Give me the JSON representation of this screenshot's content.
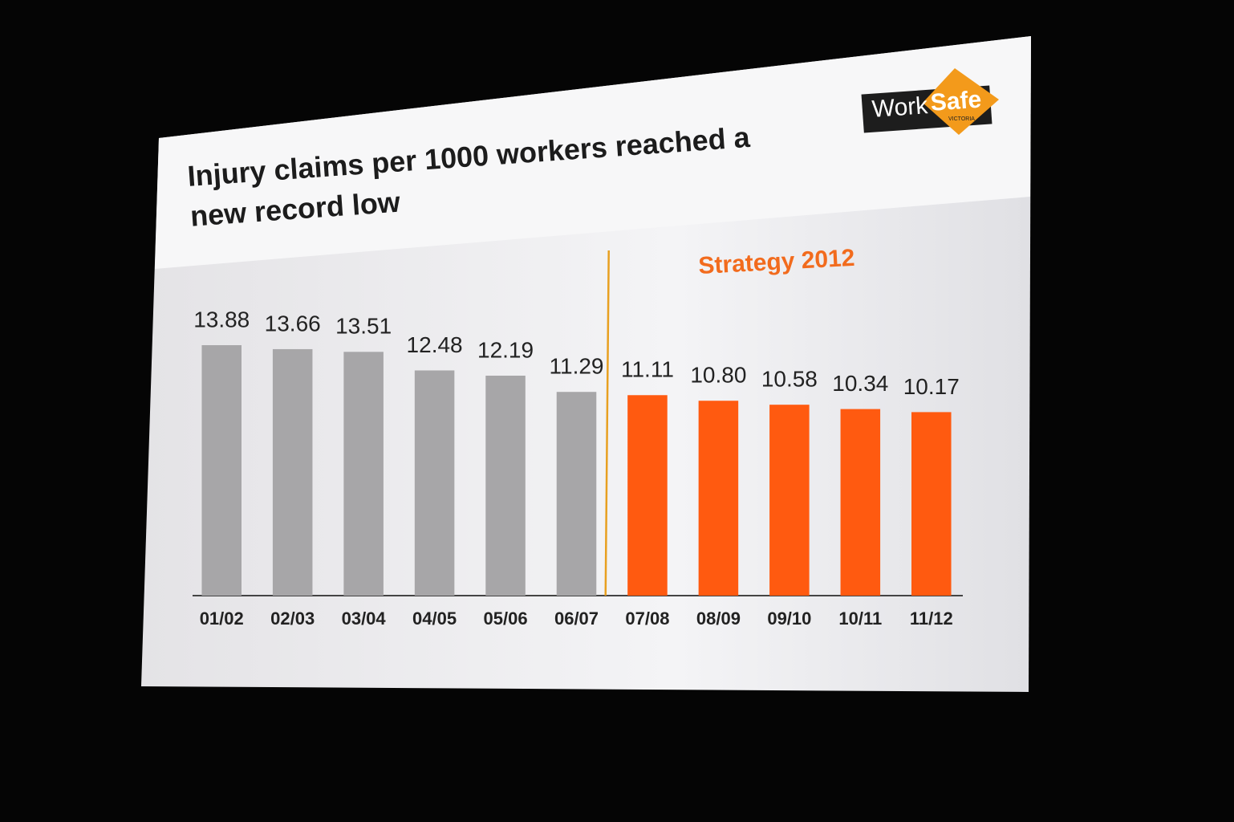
{
  "chart_data": {
    "type": "bar",
    "title": "Injury claims per 1000 workers reached a new record low",
    "annotation": "Strategy 2012",
    "logo": {
      "work": "Work",
      "safe": "Safe",
      "sub": "VICTORIA"
    },
    "categories": [
      "01/02",
      "02/03",
      "03/04",
      "04/05",
      "05/06",
      "06/07",
      "07/08",
      "08/09",
      "09/10",
      "10/11",
      "11/12"
    ],
    "values": [
      13.88,
      13.66,
      13.51,
      12.48,
      12.19,
      11.29,
      11.11,
      10.8,
      10.58,
      10.34,
      10.17
    ],
    "value_labels": [
      "13.88",
      "13.66",
      "13.51",
      "12.48",
      "12.19",
      "11.29",
      "11.11",
      "10.80",
      "10.58",
      "10.34",
      "10.17"
    ],
    "colors": [
      "#a7a6a8",
      "#a7a6a8",
      "#a7a6a8",
      "#a7a6a8",
      "#a7a6a8",
      "#a7a6a8",
      "#ff5a10",
      "#ff5a10",
      "#ff5a10",
      "#ff5a10",
      "#ff5a10"
    ],
    "divider_color": "#e8a020"
  }
}
